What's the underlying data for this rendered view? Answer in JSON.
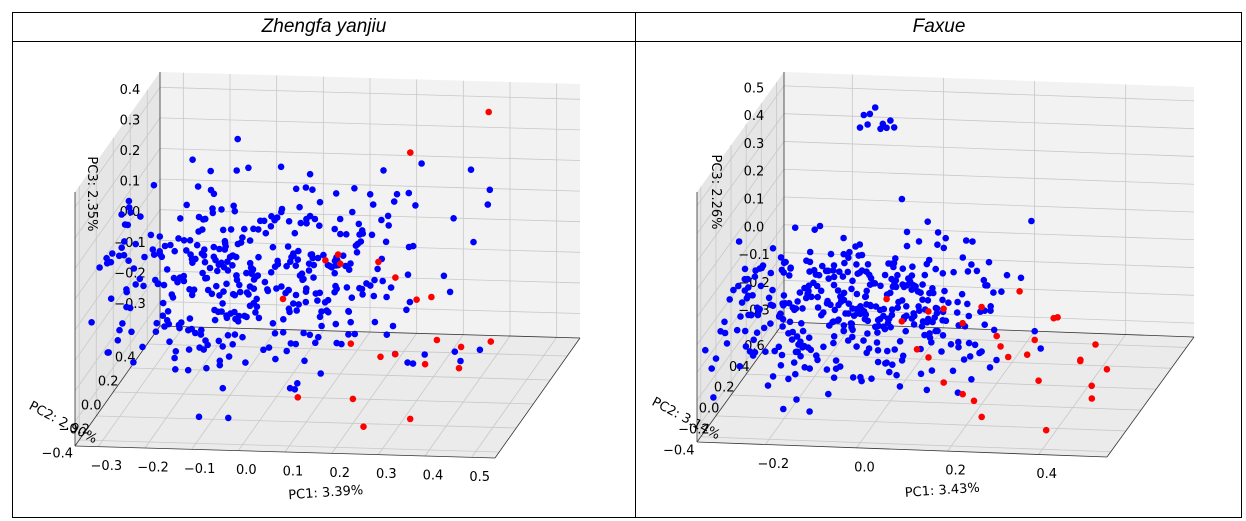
{
  "chart_data": [
    {
      "type": "scatter",
      "projection": "3d",
      "title": "Zhengfa yanjiu",
      "xlabel": "PC1: 3.39%",
      "ylabel": "PC2: 2.90%",
      "zlabel": "PC3: 2.35%",
      "xlim": [
        -0.35,
        0.55
      ],
      "ylim": [
        -0.45,
        0.55
      ],
      "zlim": [
        -0.38,
        0.45
      ],
      "x_ticks": [
        "−0.3",
        "−0.2",
        "−0.1",
        "0.0",
        "0.1",
        "0.2",
        "0.3",
        "0.4",
        "0.5"
      ],
      "y_ticks": [
        "−0.4",
        "−0.2",
        "0.0",
        "0.2",
        "0.4"
      ],
      "z_ticks": [
        "−0.3",
        "−0.2",
        "−0.1",
        "0.0",
        "0.1",
        "0.2",
        "0.3",
        "0.4"
      ],
      "grid": true,
      "series": [
        {
          "color": "#0000ff",
          "seed": 11,
          "count": 400,
          "center": [
            -0.05,
            0.1,
            -0.02
          ],
          "spread": [
            0.18,
            0.2,
            0.15
          ]
        },
        {
          "color": "#ff0000",
          "seed": 23,
          "count": 22,
          "points": [
            [
              0.4,
              0.3,
              0.45
            ],
            [
              0.25,
              0.2,
              0.35
            ],
            [
              0.15,
              -0.1,
              0.13
            ],
            [
              0.2,
              0.1,
              0.03
            ],
            [
              0.1,
              0.2,
              -0.02
            ],
            [
              0.3,
              0.0,
              -0.05
            ],
            [
              0.35,
              -0.1,
              0.0
            ],
            [
              0.38,
              -0.2,
              -0.1
            ],
            [
              0.45,
              -0.3,
              -0.08
            ],
            [
              0.3,
              -0.25,
              -0.13
            ],
            [
              0.25,
              -0.15,
              -0.18
            ],
            [
              0.4,
              -0.05,
              -0.25
            ],
            [
              0.2,
              -0.2,
              -0.3
            ],
            [
              0.15,
              0.05,
              -0.22
            ],
            [
              0.1,
              -0.3,
              -0.26
            ],
            [
              0.35,
              -0.35,
              -0.3
            ],
            [
              0.05,
              0.3,
              -0.05
            ],
            [
              -0.05,
              0.35,
              -0.2
            ],
            [
              0.3,
              0.1,
              -0.3
            ],
            [
              0.25,
              -0.35,
              -0.33
            ],
            [
              0.45,
              0.05,
              -0.2
            ],
            [
              0.2,
              0.3,
              -0.1
            ]
          ]
        }
      ]
    },
    {
      "type": "scatter",
      "projection": "3d",
      "title": "Faxue",
      "xlabel": "PC1: 3.43%",
      "ylabel": "PC2: 3.14%",
      "zlabel": "PC3: 2.26%",
      "xlim": [
        -0.35,
        0.55
      ],
      "ylim": [
        -0.45,
        0.7
      ],
      "zlim": [
        -0.35,
        0.55
      ],
      "x_ticks": [
        "−0.2",
        "0.0",
        "0.2",
        "0.4"
      ],
      "y_ticks": [
        "−0.4",
        "−0.2",
        "0.0",
        "0.2",
        "0.4",
        "0.6"
      ],
      "z_ticks": [
        "−0.3",
        "−0.2",
        "−0.1",
        "0.0",
        "0.1",
        "0.2",
        "0.3",
        "0.4",
        "0.5"
      ],
      "grid": true,
      "series": [
        {
          "color": "#0000ff",
          "seed": 37,
          "count": 400,
          "center": [
            -0.08,
            0.15,
            -0.08
          ],
          "spread": [
            0.16,
            0.2,
            0.1
          ],
          "extra_points": [
            [
              -0.1,
              0.4,
              0.55
            ],
            [
              -0.08,
              0.38,
              0.5
            ],
            [
              -0.12,
              0.42,
              0.48
            ],
            [
              -0.06,
              0.36,
              0.52
            ],
            [
              -0.14,
              0.44,
              0.46
            ],
            [
              -0.11,
              0.39,
              0.53
            ],
            [
              -0.09,
              0.41,
              0.47
            ],
            [
              -0.07,
              0.37,
              0.49
            ],
            [
              -0.13,
              0.43,
              0.51
            ],
            [
              -0.05,
              0.35,
              0.5
            ]
          ]
        },
        {
          "color": "#ff0000",
          "seed": 41,
          "count": 28,
          "points": [
            [
              0.3,
              -0.1,
              0.1
            ],
            [
              0.4,
              -0.2,
              0.05
            ],
            [
              0.2,
              0.0,
              0.0
            ],
            [
              0.35,
              -0.3,
              -0.05
            ],
            [
              0.45,
              -0.2,
              -0.1
            ],
            [
              0.1,
              0.1,
              -0.05
            ],
            [
              0.25,
              -0.05,
              -0.12
            ],
            [
              0.15,
              0.05,
              -0.08
            ],
            [
              0.5,
              -0.35,
              -0.18
            ],
            [
              0.35,
              -0.15,
              -0.2
            ],
            [
              0.2,
              -0.25,
              -0.22
            ],
            [
              0.05,
              0.2,
              -0.1
            ],
            [
              0.3,
              0.1,
              -0.15
            ],
            [
              0.45,
              -0.05,
              -0.25
            ],
            [
              0.4,
              -0.35,
              -0.3
            ],
            [
              0.1,
              -0.1,
              -0.15
            ],
            [
              0.0,
              0.15,
              -0.12
            ],
            [
              0.2,
              0.2,
              -0.18
            ],
            [
              0.25,
              -0.3,
              -0.28
            ],
            [
              0.35,
              0.05,
              -0.05
            ],
            [
              0.15,
              -0.2,
              -0.2
            ],
            [
              0.05,
              0.05,
              -0.18
            ],
            [
              0.45,
              0.0,
              -0.12
            ],
            [
              0.3,
              -0.25,
              -0.08
            ],
            [
              0.4,
              0.1,
              -0.22
            ],
            [
              -0.05,
              0.25,
              -0.08
            ],
            [
              0.2,
              -0.1,
              -0.3
            ],
            [
              0.5,
              -0.15,
              -0.15
            ]
          ]
        }
      ]
    }
  ]
}
